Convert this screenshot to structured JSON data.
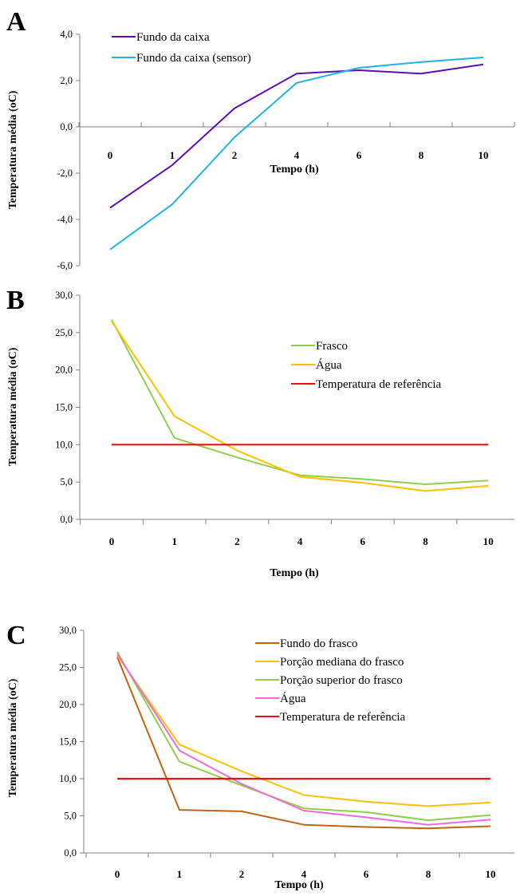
{
  "chart_data": [
    {
      "panel": "A",
      "type": "line",
      "categories": [
        "0",
        "1",
        "2",
        "4",
        "6",
        "8",
        "10"
      ],
      "xlabel": "Tempo (h)",
      "ylabel": "Temperatura média (oC)",
      "ylim": [
        -6.0,
        4.0
      ],
      "yticks": [
        "4,0",
        "2,0",
        "0,0",
        "-2,0",
        "-4,0",
        "-6,0"
      ],
      "ytick_values": [
        4,
        2,
        0,
        -2,
        -4,
        -6
      ],
      "legend_position": "top-left",
      "grid": false,
      "series": [
        {
          "name": "Fundo da caixa",
          "color": "#5b0fb5",
          "values": [
            -3.5,
            -1.65,
            0.8,
            2.3,
            2.45,
            2.3,
            2.7
          ]
        },
        {
          "name": "Fundo da caixa (sensor)",
          "color": "#1fb3e6",
          "values": [
            -5.3,
            -3.35,
            -0.45,
            1.9,
            2.55,
            2.8,
            3.0
          ]
        }
      ]
    },
    {
      "panel": "B",
      "type": "line",
      "categories": [
        "0",
        "1",
        "2",
        "4",
        "6",
        "8",
        "10"
      ],
      "xlabel": "Tempo (h)",
      "ylabel": "Temperatura média (oC)",
      "ylim": [
        0,
        30
      ],
      "yticks": [
        "30,0",
        "25,0",
        "20,0",
        "15,0",
        "10,0",
        "5,0",
        "0,0"
      ],
      "ytick_values": [
        30,
        25,
        20,
        15,
        10,
        5,
        0
      ],
      "legend_position": "top-right",
      "grid": false,
      "series": [
        {
          "name": "Frasco",
          "color": "#8fcf4a",
          "values": [
            26.7,
            10.9,
            8.3,
            5.9,
            5.4,
            4.7,
            5.2
          ]
        },
        {
          "name": "Água",
          "color": "#ffc000",
          "values": [
            26.5,
            13.8,
            9.2,
            5.7,
            4.9,
            3.8,
            4.5
          ]
        },
        {
          "name": "Temperatura de referência",
          "color": "#e81010",
          "values": [
            10,
            10,
            10,
            10,
            10,
            10,
            10
          ]
        }
      ]
    },
    {
      "panel": "C",
      "type": "line",
      "categories": [
        "0",
        "1",
        "2",
        "4",
        "6",
        "8",
        "10"
      ],
      "xlabel": "Tempo (h)",
      "ylabel": "Temperatura média (oC)",
      "ylim": [
        0,
        30
      ],
      "yticks": [
        "30,0",
        "25,0",
        "20,0",
        "15,0",
        "10,0",
        "5,0",
        "0,0"
      ],
      "ytick_values": [
        30,
        25,
        20,
        15,
        10,
        5,
        0
      ],
      "legend_position": "top-right",
      "grid": false,
      "series": [
        {
          "name": "Fundo do frasco",
          "color": "#c0650f",
          "values": [
            26.4,
            5.8,
            5.6,
            3.8,
            3.5,
            3.3,
            3.6
          ]
        },
        {
          "name": "Porção mediana do frasco",
          "color": "#ffc000",
          "values": [
            26.6,
            14.6,
            11.0,
            7.8,
            6.9,
            6.3,
            6.8
          ]
        },
        {
          "name": "Porção superior do frasco",
          "color": "#8fcf4a",
          "values": [
            27.1,
            12.3,
            9.1,
            6.0,
            5.5,
            4.4,
            5.1
          ]
        },
        {
          "name": "Água",
          "color": "#f06ad8",
          "values": [
            26.8,
            13.8,
            9.3,
            5.7,
            4.8,
            3.8,
            4.5
          ]
        },
        {
          "name": "Temperatura de referência",
          "color": "#e81010",
          "values": [
            10,
            10,
            10,
            10,
            10,
            10,
            10
          ]
        }
      ]
    }
  ]
}
